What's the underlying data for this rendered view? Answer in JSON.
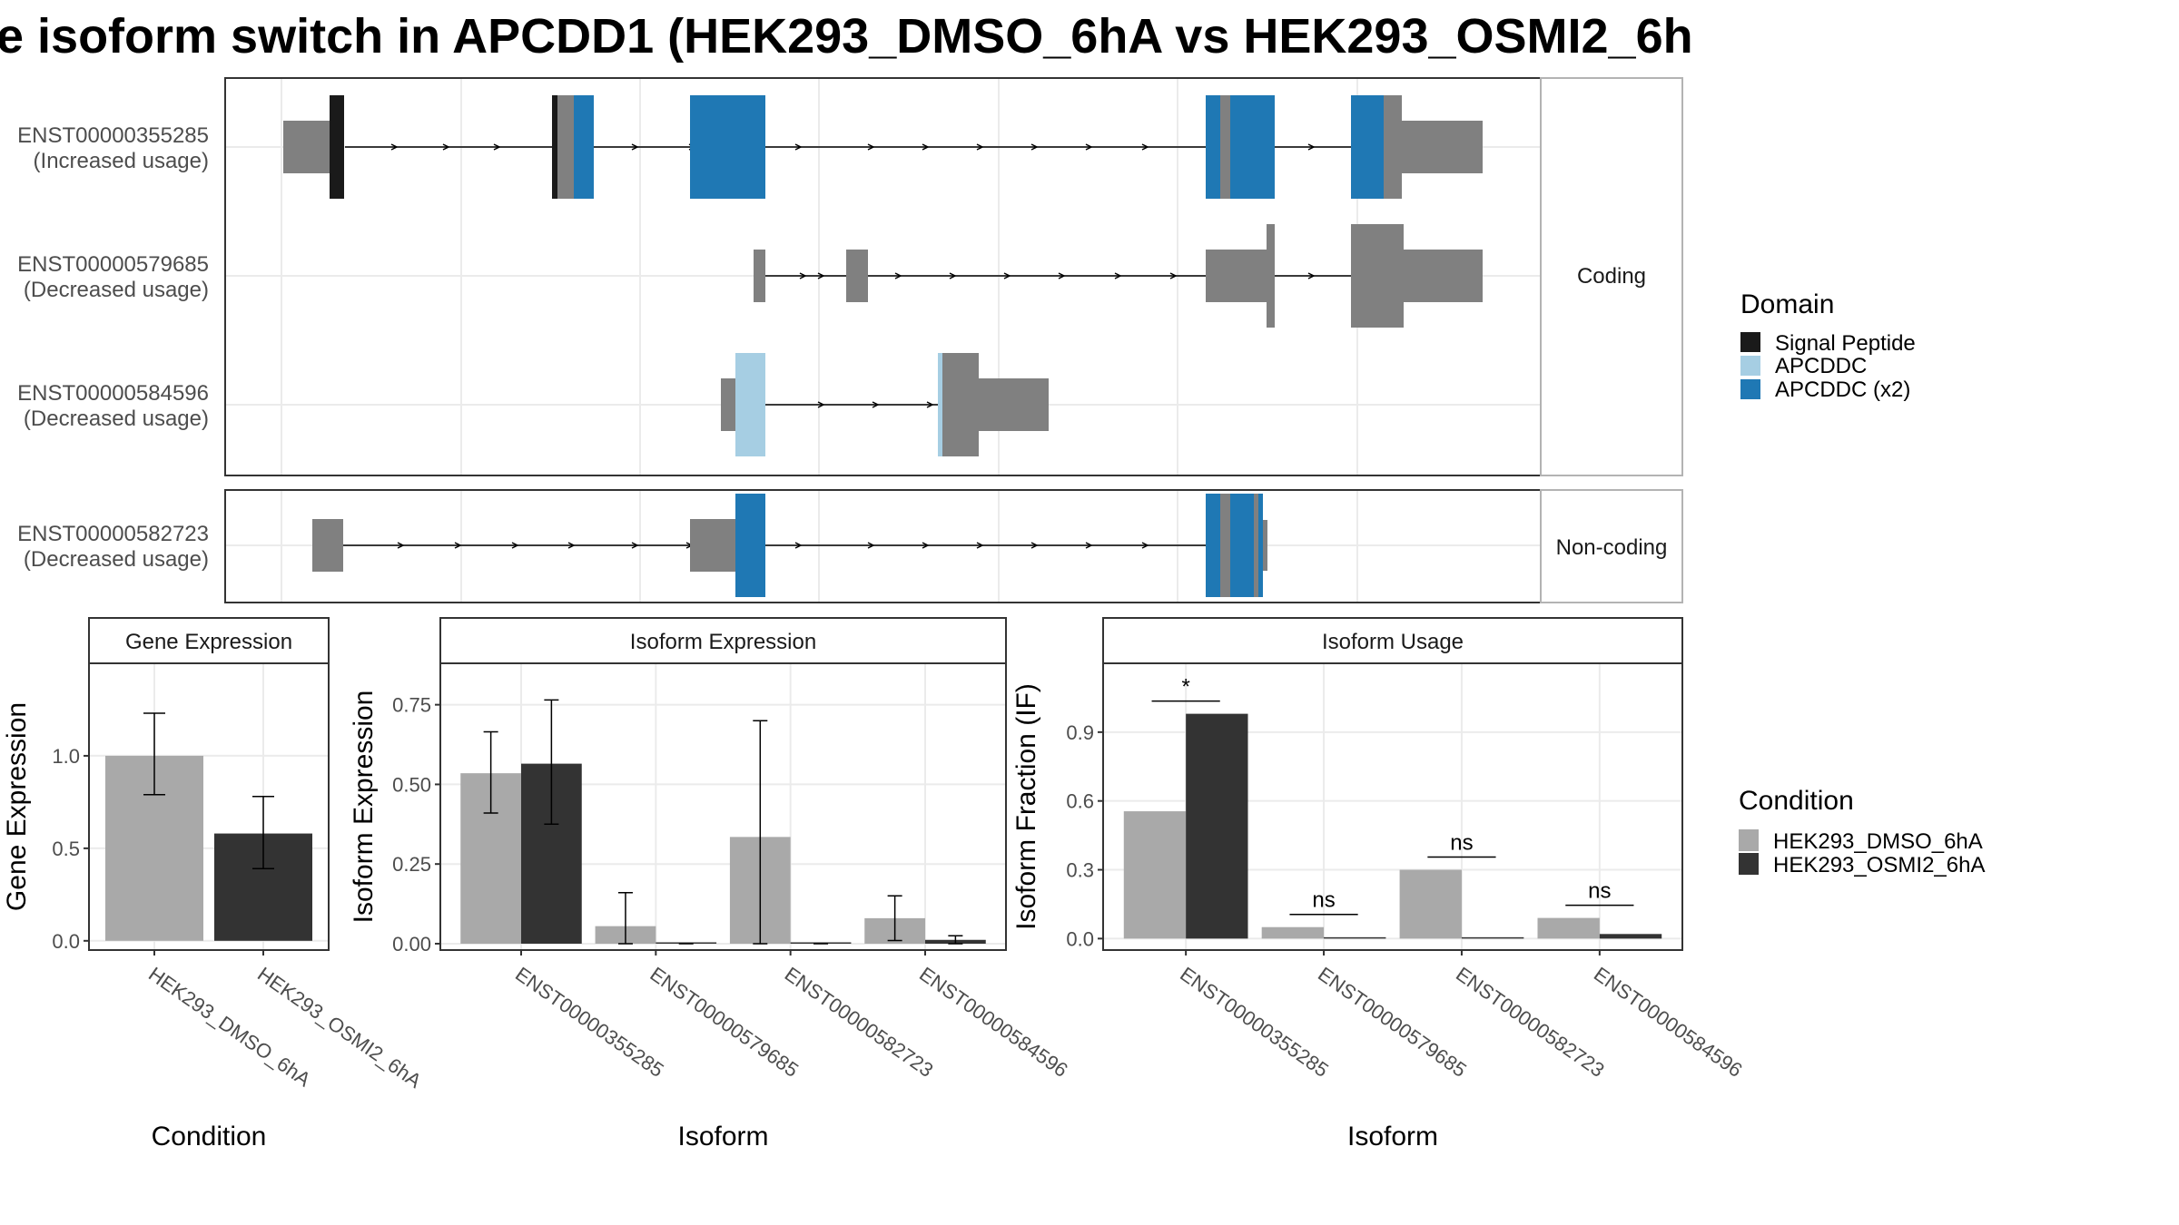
{
  "title": "e isoform switch in APCDD1 (HEK293_DMSO_6hA vs HEK293_OSMI2_6h",
  "colors": {
    "exon": "#808080",
    "signal_peptide": "#1a1a1a",
    "apcddc": "#a6cee3",
    "apcddc_x2": "#1f78b4",
    "cond_dmso": "#a9a9a9",
    "cond_osmi2": "#333333",
    "grid": "#ebebeb",
    "panel_border": "#333333",
    "strip_fill": "#ffffff"
  },
  "structure": {
    "coding_strip": "Coding",
    "noncoding_strip": "Non-coding",
    "transcripts": [
      {
        "id": "ENST00000355285",
        "usage": "(Increased usage)",
        "group": "coding"
      },
      {
        "id": "ENST00000579685",
        "usage": "(Decreased usage)",
        "group": "coding"
      },
      {
        "id": "ENST00000584596",
        "usage": "(Decreased usage)",
        "group": "coding"
      },
      {
        "id": "ENST00000582723",
        "usage": "(Decreased usage)",
        "group": "noncoding"
      }
    ]
  },
  "legend_domain": {
    "title": "Domain",
    "items": [
      {
        "label": "Signal Peptide",
        "color": "#1a1a1a"
      },
      {
        "label": "APCDDC",
        "color": "#a6cee3"
      },
      {
        "label": "APCDDC (x2)",
        "color": "#1f78b4"
      }
    ]
  },
  "legend_condition": {
    "title": "Condition",
    "items": [
      {
        "label": "HEK293_DMSO_6hA",
        "color": "#a9a9a9"
      },
      {
        "label": "HEK293_OSMI2_6hA",
        "color": "#333333"
      }
    ]
  },
  "chart_data": [
    {
      "type": "bar",
      "strip": "Gene Expression",
      "xlabel": "Condition",
      "ylabel": "Gene Expression",
      "categories": [
        "HEK293_DMSO_6hA",
        "HEK293_OSMI2_6hA"
      ],
      "values": [
        1.0,
        0.58
      ],
      "errors_low": [
        0.79,
        0.39
      ],
      "errors_high": [
        1.23,
        0.78
      ],
      "yticks": [
        "0.0",
        "0.5",
        "1.0"
      ],
      "ylim": [
        -0.05,
        1.5
      ]
    },
    {
      "type": "bar",
      "strip": "Isoform Expression",
      "xlabel": "Isoform",
      "ylabel": "Isoform Expression",
      "categories": [
        "ENST00000355285",
        "ENST00000579685",
        "ENST00000582723",
        "ENST00000584596"
      ],
      "series": [
        {
          "name": "HEK293_DMSO_6hA",
          "values": [
            0.535,
            0.055,
            0.335,
            0.08
          ],
          "err_low": [
            0.41,
            0.0,
            0.0,
            0.01
          ],
          "err_high": [
            0.665,
            0.16,
            0.7,
            0.15
          ]
        },
        {
          "name": "HEK293_OSMI2_6hA",
          "values": [
            0.565,
            0.0,
            0.0,
            0.012
          ],
          "err_low": [
            0.375,
            0.0,
            0.0,
            0.0
          ],
          "err_high": [
            0.765,
            0.0,
            0.0,
            0.025
          ]
        }
      ],
      "yticks": [
        "0.00",
        "0.25",
        "0.50",
        "0.75"
      ],
      "ylim": [
        -0.02,
        0.88
      ]
    },
    {
      "type": "bar",
      "strip": "Isoform Usage",
      "xlabel": "Isoform",
      "ylabel": "Isoform Fraction (IF)",
      "categories": [
        "ENST00000355285",
        "ENST00000579685",
        "ENST00000582723",
        "ENST00000584596"
      ],
      "series": [
        {
          "name": "HEK293_DMSO_6hA",
          "values": [
            0.555,
            0.05,
            0.3,
            0.09
          ]
        },
        {
          "name": "HEK293_OSMI2_6hA",
          "values": [
            0.98,
            0.0,
            0.0,
            0.02
          ]
        }
      ],
      "significance": [
        "*",
        "ns",
        "ns",
        "ns"
      ],
      "yticks": [
        "0.0",
        "0.3",
        "0.6",
        "0.9"
      ],
      "ylim": [
        -0.05,
        1.2
      ]
    }
  ]
}
